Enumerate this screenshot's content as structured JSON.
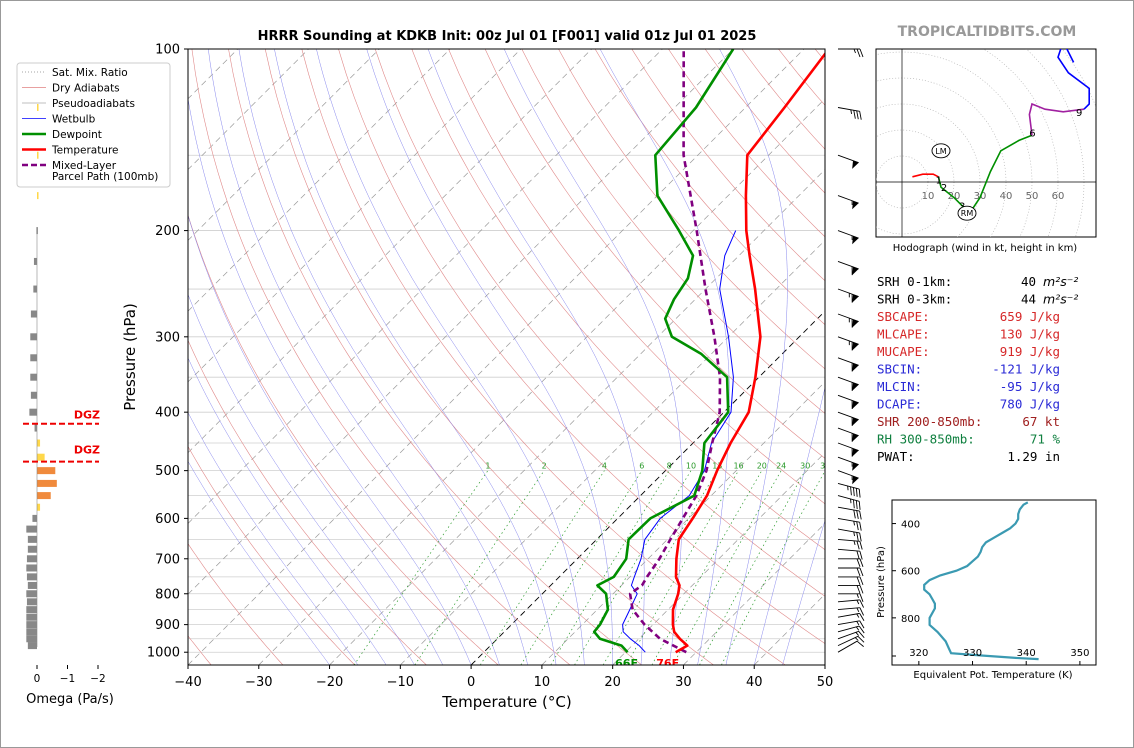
{
  "title": "HRRR Sounding at KDKB Init: 00z Jul 01 [F001] valid 01z Jul 01 2025",
  "brand": "TROPICALTIDBITS.COM",
  "chart_data": {
    "type": "skewt",
    "xlabel": "Temperature (°C)",
    "ylabel": "Pressure (hPa)",
    "xlim": [
      -40,
      50
    ],
    "ylim": [
      1050,
      100
    ],
    "x_ticks": [
      "−40",
      "−30",
      "−20",
      "−10",
      "0",
      "10",
      "20",
      "30",
      "40",
      "50"
    ],
    "y_ticks": [
      "100",
      "200",
      "300",
      "400",
      "500",
      "600",
      "700",
      "800",
      "900",
      "1000"
    ],
    "legend": {
      "placement": "upper-left",
      "entries": [
        {
          "label": "Sat. Mix. Ratio",
          "color": "#888888",
          "style": "dotted"
        },
        {
          "label": "Dry Adiabats",
          "color": "#e08080",
          "style": "solid"
        },
        {
          "label": "Pseudoadiabats",
          "color": "#aaaaaa",
          "style": "solid"
        },
        {
          "label": "Wetbulb",
          "color": "#0000ff",
          "style": "solid"
        },
        {
          "label": "Dewpoint",
          "color": "#008f00",
          "style": "bold"
        },
        {
          "label": "Temperature",
          "color": "#ff0000",
          "style": "bold"
        },
        {
          "label": "Mixed-Layer\nParcel Path (100mb)",
          "color": "#800080",
          "style": "dashed"
        }
      ]
    },
    "series": [
      {
        "name": "Temperature",
        "color": "#ff0000",
        "points": [
          [
            1000,
            27.1
          ],
          [
            975,
            27.8
          ],
          [
            950,
            25.8
          ],
          [
            925,
            24.0
          ],
          [
            900,
            22.8
          ],
          [
            850,
            20.7
          ],
          [
            800,
            19.2
          ],
          [
            775,
            18.2
          ],
          [
            750,
            16.5
          ],
          [
            700,
            14.0
          ],
          [
            650,
            11.6
          ],
          [
            600,
            10.6
          ],
          [
            550,
            9.4
          ],
          [
            500,
            7.3
          ],
          [
            450,
            5.3
          ],
          [
            400,
            3.5
          ],
          [
            350,
            -0.5
          ],
          [
            300,
            -5.5
          ],
          [
            250,
            -13.0
          ],
          [
            220,
            -18.5
          ],
          [
            200,
            -22.5
          ],
          [
            175,
            -27.5
          ],
          [
            150,
            -33.0
          ],
          [
            125,
            -34.5
          ],
          [
            100,
            -36.5
          ]
        ]
      },
      {
        "name": "Dewpoint",
        "color": "#008f00",
        "points": [
          [
            1000,
            20.3
          ],
          [
            975,
            18.5
          ],
          [
            950,
            14.5
          ],
          [
            925,
            12.7
          ],
          [
            900,
            12.5
          ],
          [
            850,
            11.5
          ],
          [
            800,
            9.0
          ],
          [
            775,
            6.6
          ],
          [
            750,
            7.7
          ],
          [
            700,
            6.9
          ],
          [
            650,
            4.5
          ],
          [
            600,
            4.6
          ],
          [
            550,
            7.6
          ],
          [
            500,
            5.2
          ],
          [
            450,
            1.6
          ],
          [
            400,
            0.6
          ],
          [
            350,
            -4.5
          ],
          [
            320,
            -11.5
          ],
          [
            300,
            -18.0
          ],
          [
            280,
            -21.5
          ],
          [
            260,
            -23.0
          ],
          [
            240,
            -24.0
          ],
          [
            220,
            -26.5
          ],
          [
            200,
            -32.0
          ],
          [
            175,
            -40.0
          ],
          [
            150,
            -46.0
          ],
          [
            125,
            -47.0
          ],
          [
            100,
            -50.0
          ]
        ]
      },
      {
        "name": "Wetbulb",
        "color": "#0000ff",
        "points": [
          [
            1000,
            22.8
          ],
          [
            975,
            21.0
          ],
          [
            950,
            18.8
          ],
          [
            925,
            16.8
          ],
          [
            900,
            15.7
          ],
          [
            850,
            14.6
          ],
          [
            800,
            13.4
          ],
          [
            775,
            11.4
          ],
          [
            750,
            10.6
          ],
          [
            700,
            9.0
          ],
          [
            650,
            6.8
          ],
          [
            600,
            6.0
          ],
          [
            550,
            6.9
          ],
          [
            500,
            5.5
          ],
          [
            450,
            2.6
          ],
          [
            400,
            1.0
          ],
          [
            350,
            -3.6
          ],
          [
            300,
            -10.0
          ],
          [
            250,
            -18.0
          ],
          [
            220,
            -22.0
          ],
          [
            200,
            -24.0
          ]
        ]
      },
      {
        "name": "Mixed-Layer Parcel Path (100mb)",
        "color": "#800080",
        "points": [
          [
            1000,
            28.6
          ],
          [
            950,
            23.0
          ],
          [
            900,
            18.8
          ],
          [
            850,
            15.0
          ],
          [
            800,
            12.4
          ],
          [
            775,
            12.9
          ],
          [
            750,
            12.4
          ],
          [
            700,
            11.6
          ],
          [
            650,
            10.4
          ],
          [
            600,
            9.2
          ],
          [
            550,
            7.9
          ],
          [
            500,
            5.8
          ],
          [
            450,
            2.7
          ],
          [
            400,
            -0.6
          ],
          [
            350,
            -5.5
          ],
          [
            300,
            -12.0
          ],
          [
            250,
            -20.0
          ],
          [
            200,
            -29.5
          ],
          [
            150,
            -42.0
          ],
          [
            100,
            -57.0
          ]
        ]
      }
    ],
    "surface_labels": {
      "dewpoint": "66F",
      "temperature": "76F"
    },
    "mixing_ratio_labels": [
      "1",
      "2",
      "4",
      "6",
      "8",
      "10",
      "13",
      "16",
      "20",
      "24",
      "30",
      "36"
    ]
  },
  "omega_panel": {
    "xlabel": "Omega (Pa/s)",
    "x_ticks": [
      "0",
      "−1",
      "−2"
    ],
    "dgz_label": "DGZ",
    "dgz_top_hpa": 418,
    "dgz_bottom_hpa": 483,
    "bars": [
      {
        "p": 975,
        "v": -0.3
      },
      {
        "p": 950,
        "v": -0.35
      },
      {
        "p": 925,
        "v": -0.35
      },
      {
        "p": 900,
        "v": -0.35
      },
      {
        "p": 875,
        "v": -0.35
      },
      {
        "p": 850,
        "v": -0.35
      },
      {
        "p": 825,
        "v": -0.33
      },
      {
        "p": 800,
        "v": -0.35
      },
      {
        "p": 775,
        "v": -0.3
      },
      {
        "p": 750,
        "v": -0.33
      },
      {
        "p": 725,
        "v": -0.35
      },
      {
        "p": 700,
        "v": -0.33
      },
      {
        "p": 675,
        "v": -0.3
      },
      {
        "p": 650,
        "v": -0.3
      },
      {
        "p": 625,
        "v": -0.35
      },
      {
        "p": 600,
        "v": -0.15
      },
      {
        "p": 575,
        "v": 0.1
      },
      {
        "p": 550,
        "v": 0.45
      },
      {
        "p": 525,
        "v": 0.65
      },
      {
        "p": 500,
        "v": 0.6
      },
      {
        "p": 475,
        "v": 0.25
      },
      {
        "p": 450,
        "v": 0.1
      },
      {
        "p": 425,
        "v": -0.08
      },
      {
        "p": 400,
        "v": -0.25
      },
      {
        "p": 375,
        "v": -0.2
      },
      {
        "p": 350,
        "v": -0.22
      },
      {
        "p": 325,
        "v": -0.22
      },
      {
        "p": 300,
        "v": -0.22
      },
      {
        "p": 275,
        "v": -0.2
      },
      {
        "p": 250,
        "v": -0.12
      },
      {
        "p": 225,
        "v": -0.1
      },
      {
        "p": 200,
        "v": -0.02
      },
      {
        "p": 175,
        "v": 0.05
      },
      {
        "p": 150,
        "v": 0.05
      },
      {
        "p": 125,
        "v": 0.05
      }
    ]
  },
  "hodograph": {
    "caption": "Hodograph (wind in kt, height in km)",
    "ring_labels": [
      "10",
      "20",
      "30",
      "40",
      "50",
      "60"
    ],
    "markers": {
      "lm": "LM",
      "rm": "RM"
    },
    "height_labels": [
      "1",
      "2",
      "3",
      "6",
      "9"
    ],
    "storm_motion": {
      "lm": [
        15,
        12
      ],
      "rm": [
        25,
        -12
      ]
    },
    "segments": [
      {
        "color": "#ff0000",
        "points": [
          [
            4,
            2
          ],
          [
            8,
            3
          ],
          [
            12,
            3
          ],
          [
            14,
            2
          ]
        ]
      },
      {
        "color": "#008f00",
        "points": [
          [
            14,
            2
          ],
          [
            15,
            -2
          ],
          [
            20,
            -6
          ],
          [
            26,
            -12
          ],
          [
            30,
            -6
          ],
          [
            34,
            4
          ],
          [
            38,
            12
          ],
          [
            45,
            16
          ],
          [
            50,
            18
          ]
        ]
      },
      {
        "color": "#a020a0",
        "points": [
          [
            50,
            18
          ],
          [
            49,
            26
          ],
          [
            50,
            30
          ],
          [
            55,
            28
          ],
          [
            62,
            27
          ],
          [
            70,
            28
          ]
        ]
      },
      {
        "color": "#0000ff",
        "points": [
          [
            70,
            28
          ],
          [
            72,
            30
          ],
          [
            72,
            36
          ],
          [
            64,
            42
          ],
          [
            60,
            48
          ],
          [
            62,
            54
          ],
          [
            66,
            46
          ]
        ]
      }
    ],
    "km_points": [
      {
        "label": "1",
        "u": 13,
        "v": 1
      },
      {
        "label": "2",
        "u": 15,
        "v": -2
      },
      {
        "label": "3",
        "u": 22,
        "v": -9
      },
      {
        "label": "6",
        "u": 49,
        "v": 19
      },
      {
        "label": "9",
        "u": 67,
        "v": 27
      }
    ]
  },
  "indices": [
    {
      "label": "SRH 0-1km:",
      "value": "40",
      "unit": "m²s⁻²",
      "color": "#000000"
    },
    {
      "label": "SRH 0-3km:",
      "value": "44",
      "unit": "m²s⁻²",
      "color": "#000000"
    },
    {
      "label": "SBCAPE:",
      "value": "659 J/kg",
      "color": "#d62728"
    },
    {
      "label": "MLCAPE:",
      "value": "130 J/kg",
      "color": "#d62728"
    },
    {
      "label": "MUCAPE:",
      "value": "919 J/kg",
      "color": "#d62728"
    },
    {
      "label": "SBCIN:",
      "value": "-121 J/kg",
      "color": "#2a2ad6"
    },
    {
      "label": "MLCIN:",
      "value": "-95 J/kg",
      "color": "#2a2ad6"
    },
    {
      "label": "DCAPE:",
      "value": "780 J/kg",
      "color": "#2a2ad6"
    },
    {
      "label": "SHR 200-850mb:",
      "value": "67 kt",
      "color": "#a02020"
    },
    {
      "label": "RH 300-850mb:",
      "value": "71 %",
      "color": "#108040"
    },
    {
      "label": "PWAT:",
      "value": "1.29 in",
      "color": "#000000"
    }
  ],
  "theta_e": {
    "xlabel": "Equivalent Pot. Temperature (K)",
    "ylabel": "Pressure (hPa)",
    "x_ticks": [
      "320",
      "330",
      "340",
      "350"
    ],
    "y_ticks": [
      "400",
      "600",
      "800"
    ],
    "xlim": [
      315,
      353
    ],
    "ylim": [
      1000,
      300
    ],
    "points": [
      [
        975,
        342.3
      ],
      [
        970,
        338
      ],
      [
        960,
        332
      ],
      [
        950,
        326
      ],
      [
        930,
        325.6
      ],
      [
        900,
        325
      ],
      [
        860,
        323.5
      ],
      [
        830,
        322
      ],
      [
        800,
        322
      ],
      [
        780,
        322.5
      ],
      [
        760,
        323
      ],
      [
        740,
        323
      ],
      [
        720,
        322.5
      ],
      [
        700,
        322
      ],
      [
        680,
        321
      ],
      [
        660,
        321
      ],
      [
        640,
        322
      ],
      [
        620,
        324
      ],
      [
        600,
        327
      ],
      [
        580,
        329
      ],
      [
        560,
        330
      ],
      [
        540,
        331
      ],
      [
        520,
        331.5
      ],
      [
        500,
        331.8
      ],
      [
        480,
        332.5
      ],
      [
        460,
        334
      ],
      [
        440,
        335.5
      ],
      [
        420,
        337
      ],
      [
        400,
        338
      ],
      [
        380,
        338.5
      ],
      [
        360,
        338.5
      ],
      [
        340,
        338.8
      ],
      [
        320,
        339.5
      ],
      [
        310,
        340.3
      ]
    ]
  },
  "wind_barbs": [
    {
      "p": 1000,
      "dir": 240,
      "spd": 10
    },
    {
      "p": 975,
      "dir": 245,
      "spd": 15
    },
    {
      "p": 950,
      "dir": 250,
      "spd": 15
    },
    {
      "p": 925,
      "dir": 255,
      "spd": 15
    },
    {
      "p": 900,
      "dir": 260,
      "spd": 15
    },
    {
      "p": 875,
      "dir": 260,
      "spd": 15
    },
    {
      "p": 850,
      "dir": 265,
      "spd": 15
    },
    {
      "p": 825,
      "dir": 265,
      "spd": 15
    },
    {
      "p": 800,
      "dir": 270,
      "spd": 15
    },
    {
      "p": 775,
      "dir": 270,
      "spd": 20
    },
    {
      "p": 750,
      "dir": 270,
      "spd": 20
    },
    {
      "p": 725,
      "dir": 270,
      "spd": 20
    },
    {
      "p": 700,
      "dir": 270,
      "spd": 20
    },
    {
      "p": 675,
      "dir": 275,
      "spd": 20
    },
    {
      "p": 650,
      "dir": 275,
      "spd": 25
    },
    {
      "p": 625,
      "dir": 280,
      "spd": 25
    },
    {
      "p": 600,
      "dir": 280,
      "spd": 25
    },
    {
      "p": 575,
      "dir": 280,
      "spd": 30
    },
    {
      "p": 550,
      "dir": 285,
      "spd": 35
    },
    {
      "p": 525,
      "dir": 285,
      "spd": 45
    },
    {
      "p": 500,
      "dir": 290,
      "spd": 55
    },
    {
      "p": 475,
      "dir": 290,
      "spd": 55
    },
    {
      "p": 450,
      "dir": 290,
      "spd": 60
    },
    {
      "p": 425,
      "dir": 290,
      "spd": 60
    },
    {
      "p": 400,
      "dir": 290,
      "spd": 60
    },
    {
      "p": 375,
      "dir": 290,
      "spd": 60
    },
    {
      "p": 350,
      "dir": 290,
      "spd": 60
    },
    {
      "p": 325,
      "dir": 290,
      "spd": 60
    },
    {
      "p": 300,
      "dir": 290,
      "spd": 65
    },
    {
      "p": 275,
      "dir": 290,
      "spd": 65
    },
    {
      "p": 250,
      "dir": 290,
      "spd": 65
    },
    {
      "p": 225,
      "dir": 290,
      "spd": 60
    },
    {
      "p": 200,
      "dir": 290,
      "spd": 55
    },
    {
      "p": 175,
      "dir": 290,
      "spd": 55
    },
    {
      "p": 150,
      "dir": 290,
      "spd": 50
    },
    {
      "p": 125,
      "dir": 280,
      "spd": 35
    },
    {
      "p": 100,
      "dir": 270,
      "spd": 25
    }
  ]
}
